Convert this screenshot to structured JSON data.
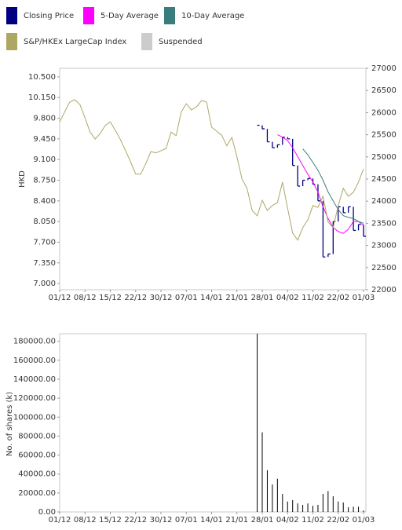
{
  "chart_data": [
    {
      "type": "line",
      "y_label": "HKD",
      "categories": [
        "01/12",
        null,
        null,
        null,
        null,
        "08/12",
        null,
        null,
        null,
        null,
        "15/12",
        null,
        null,
        null,
        null,
        "22/12",
        null,
        null,
        null,
        null,
        "30/12",
        null,
        null,
        null,
        null,
        "07/01",
        null,
        null,
        null,
        null,
        "14/01",
        null,
        null,
        null,
        null,
        "21/01",
        null,
        null,
        null,
        null,
        "28/01",
        null,
        null,
        null,
        null,
        "04/02",
        null,
        null,
        null,
        null,
        "11/02",
        null,
        null,
        null,
        null,
        "22/02",
        null,
        null,
        null,
        null,
        "01/03"
      ],
      "ylim": [
        6.895,
        10.645
      ],
      "yticks": [
        {
          "value": 7,
          "label": "7.000"
        },
        {
          "value": 7.35,
          "label": "7.350"
        },
        {
          "value": 7.7,
          "label": "7.700"
        },
        {
          "value": 8.05,
          "label": "8.050"
        },
        {
          "value": 8.4,
          "label": "8.400"
        },
        {
          "value": 8.75,
          "label": "8.750"
        },
        {
          "value": 9.1,
          "label": "9.100"
        },
        {
          "value": 9.45,
          "label": "9.450"
        },
        {
          "value": 9.8,
          "label": "9.800"
        },
        {
          "value": 10.15,
          "label": "10.150"
        },
        {
          "value": 10.5,
          "label": "10.500"
        }
      ],
      "y2lim": [
        22000,
        27000
      ],
      "y2ticks": [
        22000,
        22500,
        23000,
        23500,
        24000,
        24500,
        25000,
        25500,
        26000,
        26500,
        27000
      ],
      "series": [
        {
          "name": "Closing Price",
          "color": "#000080",
          "style": "bar",
          "values": [
            null,
            null,
            null,
            null,
            null,
            null,
            null,
            null,
            null,
            null,
            null,
            null,
            null,
            null,
            null,
            null,
            null,
            null,
            null,
            null,
            null,
            null,
            null,
            null,
            null,
            null,
            null,
            null,
            null,
            null,
            null,
            null,
            null,
            null,
            null,
            null,
            null,
            null,
            null,
            9.68,
            9.62,
            9.4,
            9.3,
            9.35,
            9.48,
            9.45,
            9.0,
            8.65,
            8.75,
            8.78,
            8.68,
            8.4,
            7.45,
            7.5,
            8.05,
            8.3,
            8.2,
            8.3,
            7.9,
            8.0,
            7.8
          ]
        },
        {
          "name": "5-Day Average",
          "color": "#ff00ff",
          "values": [
            null,
            null,
            null,
            null,
            null,
            null,
            null,
            null,
            null,
            null,
            null,
            null,
            null,
            null,
            null,
            null,
            null,
            null,
            null,
            null,
            null,
            null,
            null,
            null,
            null,
            null,
            null,
            null,
            null,
            null,
            null,
            null,
            null,
            null,
            null,
            null,
            null,
            null,
            null,
            null,
            null,
            null,
            null,
            9.52,
            9.48,
            9.42,
            9.3,
            9.15,
            9.0,
            8.85,
            8.72,
            8.55,
            8.3,
            8.1,
            7.95,
            7.88,
            7.85,
            7.92,
            8.05,
            8.05,
            7.98
          ]
        },
        {
          "name": "10-Day Average",
          "color": "#3a7d7d",
          "values": [
            null,
            null,
            null,
            null,
            null,
            null,
            null,
            null,
            null,
            null,
            null,
            null,
            null,
            null,
            null,
            null,
            null,
            null,
            null,
            null,
            null,
            null,
            null,
            null,
            null,
            null,
            null,
            null,
            null,
            null,
            null,
            null,
            null,
            null,
            null,
            null,
            null,
            null,
            null,
            null,
            null,
            null,
            null,
            null,
            null,
            null,
            null,
            null,
            9.28,
            9.18,
            9.05,
            8.92,
            8.75,
            8.55,
            8.4,
            8.25,
            8.15,
            8.12,
            8.1,
            8.05,
            8.02
          ]
        },
        {
          "name": "S&P/HKEx LargeCap Index",
          "color": "#aea764",
          "axis": "y2",
          "values": [
            25790,
            26020,
            26240,
            26290,
            26180,
            25880,
            25560,
            25400,
            25530,
            25710,
            25790,
            25600,
            25390,
            25140,
            24890,
            24610,
            24610,
            24850,
            25120,
            25090,
            25140,
            25190,
            25560,
            25480,
            26010,
            26200,
            26060,
            26130,
            26270,
            26240,
            25670,
            25580,
            25490,
            25250,
            25440,
            25000,
            24500,
            24290,
            23790,
            23670,
            24020,
            23790,
            23900,
            23970,
            24430,
            23840,
            23280,
            23120,
            23400,
            23580,
            23900,
            23860,
            24110,
            23530,
            23400,
            23900,
            24290,
            24110,
            24200,
            24430,
            24730
          ]
        }
      ],
      "suspended": {
        "name": "Suspended",
        "color": "#cccccc"
      }
    },
    {
      "type": "bar",
      "y_label": "No. of shares (k)",
      "color": "#000000",
      "categories": [
        "01/12",
        null,
        null,
        null,
        null,
        "08/12",
        null,
        null,
        null,
        null,
        "15/12",
        null,
        null,
        null,
        null,
        "22/12",
        null,
        null,
        null,
        null,
        "30/12",
        null,
        null,
        null,
        null,
        "07/01",
        null,
        null,
        null,
        null,
        "14/01",
        null,
        null,
        null,
        null,
        "21/01",
        null,
        null,
        null,
        null,
        "28/01",
        null,
        null,
        null,
        null,
        "04/02",
        null,
        null,
        null,
        null,
        "11/02",
        null,
        null,
        null,
        null,
        "22/02",
        null,
        null,
        null,
        null,
        "01/03"
      ],
      "values": [
        null,
        null,
        null,
        null,
        null,
        null,
        null,
        null,
        null,
        null,
        null,
        null,
        null,
        null,
        null,
        null,
        null,
        null,
        null,
        null,
        null,
        null,
        null,
        null,
        null,
        null,
        null,
        null,
        null,
        null,
        null,
        null,
        null,
        null,
        null,
        null,
        null,
        null,
        null,
        188000,
        84000,
        44000,
        29000,
        35000,
        19000,
        11000,
        12500,
        9000,
        7500,
        9000,
        6500,
        7500,
        19000,
        22000,
        16500,
        11000,
        10000,
        5000,
        5500,
        5500,
        1500
      ],
      "ylim": [
        0,
        188000
      ],
      "yticks": [
        {
          "value": 0,
          "label": "0.00"
        },
        {
          "value": 20000,
          "label": "20000.00"
        },
        {
          "value": 40000,
          "label": "40000.00"
        },
        {
          "value": 60000,
          "label": "60000.00"
        },
        {
          "value": 80000,
          "label": "80000.00"
        },
        {
          "value": 100000,
          "label": "100000.00"
        },
        {
          "value": 120000,
          "label": "120000.00"
        },
        {
          "value": 140000,
          "label": "140000.00"
        },
        {
          "value": 160000,
          "label": "160000.00"
        },
        {
          "value": 180000,
          "label": "180000.00"
        }
      ]
    }
  ]
}
